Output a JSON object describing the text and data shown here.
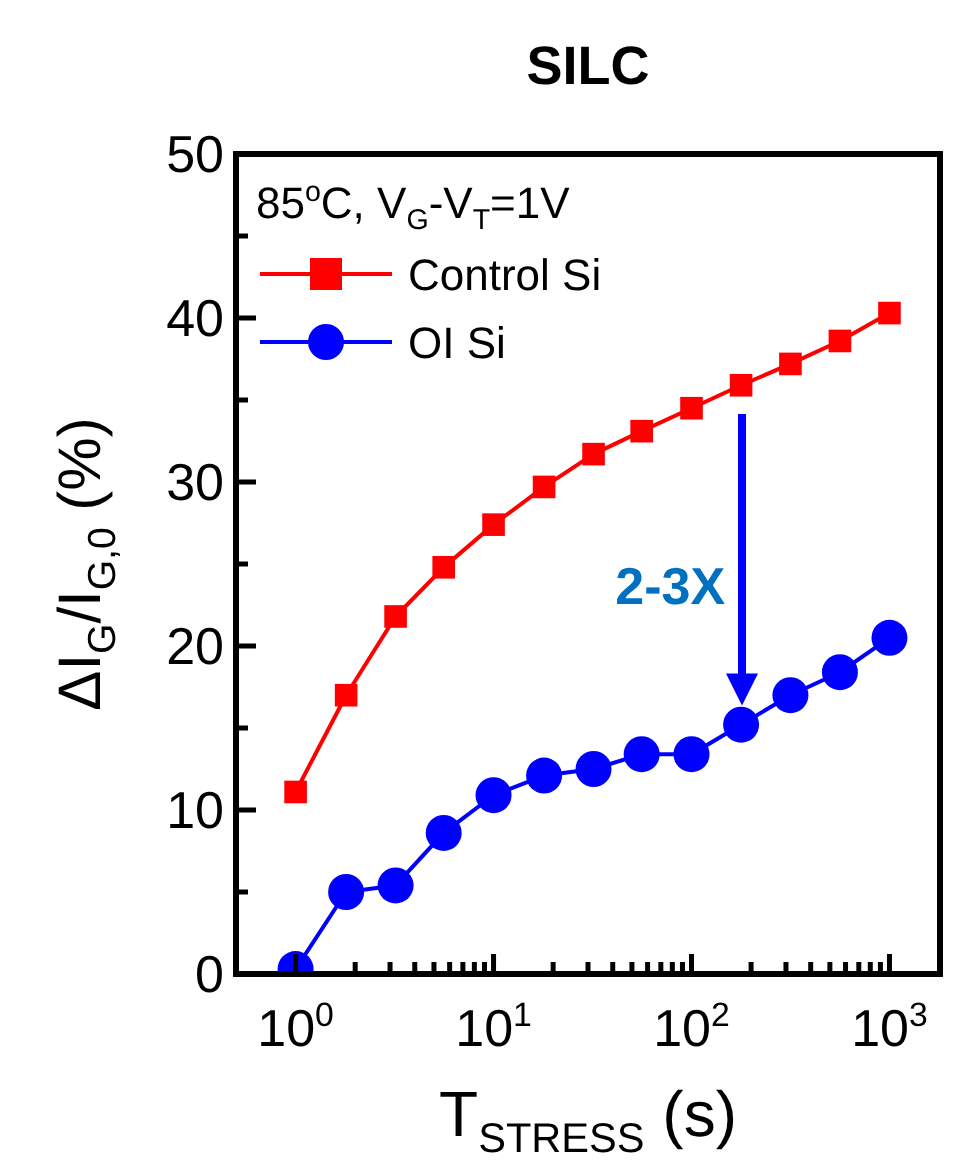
{
  "chart_data": {
    "type": "line",
    "title": "SILC",
    "xlabel": "T$_{STRESS}$ (s)",
    "ylabel": "ΔI$_{G}$/I$_{G,0}$ (%)",
    "annotations": [
      "85$^{o}$C, V$_{G}$-V$_{T}$=1V",
      "2-3X"
    ],
    "x": [
      1,
      1.8,
      3.2,
      5.6,
      10,
      18,
      32,
      56,
      100,
      178,
      316,
      562,
      1000
    ],
    "series": [
      {
        "name": "Control Si",
        "color": "#ff0000",
        "marker": "square",
        "values": [
          11.1,
          17.0,
          21.8,
          24.8,
          27.4,
          29.7,
          31.7,
          33.1,
          34.5,
          35.9,
          37.2,
          38.6,
          40.3
        ]
      },
      {
        "name": "OI Si",
        "color": "#0000ff",
        "marker": "circle",
        "values": [
          0.3,
          5.0,
          5.4,
          8.6,
          10.9,
          12.1,
          12.5,
          13.4,
          13.4,
          15.2,
          17.0,
          18.4,
          20.5
        ]
      }
    ],
    "log": "x",
    "xlim": [
      0.5,
      1800
    ],
    "ylim": [
      0,
      50
    ],
    "xticks": [
      {
        "value": 1,
        "label": "10$^{0}$"
      },
      {
        "value": 2,
        "label": null
      },
      {
        "value": 3,
        "label": null
      },
      {
        "value": 4,
        "label": null
      },
      {
        "value": 5,
        "label": null
      },
      {
        "value": 6,
        "label": null
      },
      {
        "value": 7,
        "label": null
      },
      {
        "value": 8,
        "label": null
      },
      {
        "value": 9,
        "label": null
      },
      {
        "value": 10,
        "label": "10$^{1}$"
      },
      {
        "value": 20,
        "label": null
      },
      {
        "value": 30,
        "label": null
      },
      {
        "value": 40,
        "label": null
      },
      {
        "value": 50,
        "label": null
      },
      {
        "value": 60,
        "label": null
      },
      {
        "value": 70,
        "label": null
      },
      {
        "value": 80,
        "label": null
      },
      {
        "value": 90,
        "label": null
      },
      {
        "value": 100,
        "label": "10$^{2}$"
      },
      {
        "value": 200,
        "label": null
      },
      {
        "value": 300,
        "label": null
      },
      {
        "value": 400,
        "label": null
      },
      {
        "value": 500,
        "label": null
      },
      {
        "value": 600,
        "label": null
      },
      {
        "value": 700,
        "label": null
      },
      {
        "value": 800,
        "label": null
      },
      {
        "value": 900,
        "label": null
      },
      {
        "value": 1000,
        "label": "10$^{3}$"
      }
    ],
    "yticks": [
      0,
      {
        "value": 5,
        "label": null
      },
      10,
      {
        "value": 15,
        "label": null
      },
      20,
      {
        "value": 25,
        "label": null
      },
      30,
      {
        "value": 35,
        "label": null
      },
      40,
      {
        "value": 45,
        "label": null
      },
      50
    ],
    "legend": "top left",
    "grid": false,
    "line_style": "solid"
  }
}
